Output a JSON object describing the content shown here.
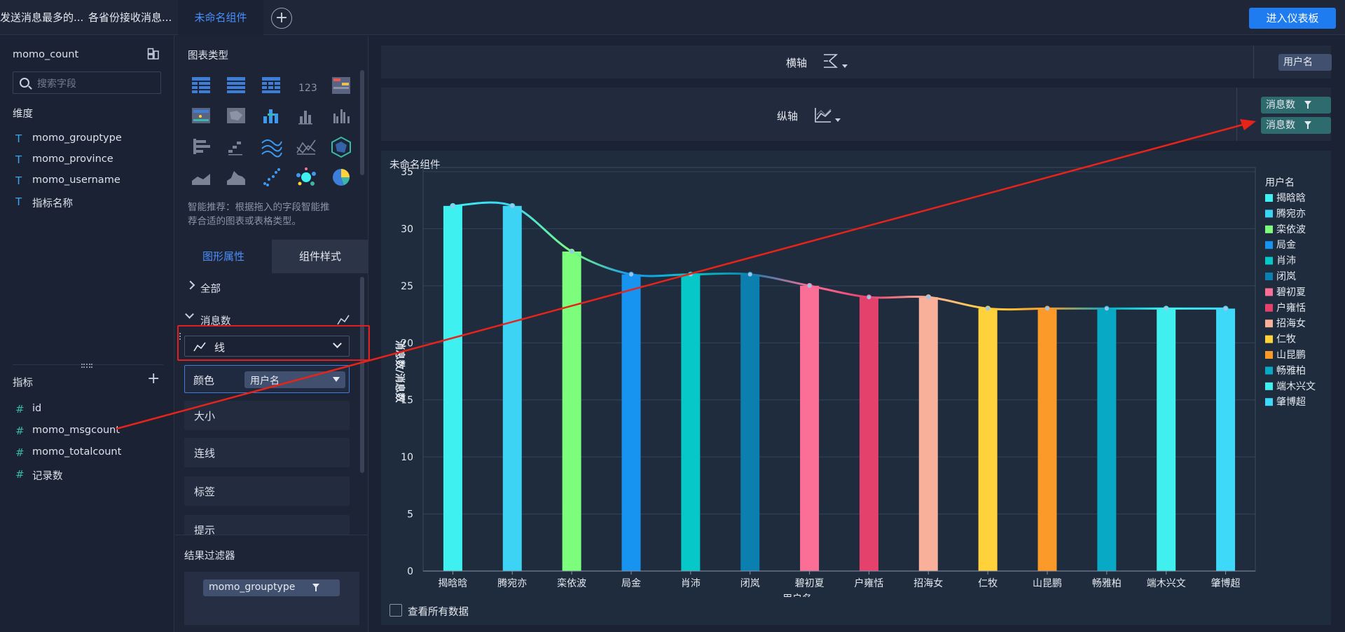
{
  "tabs": [
    {
      "label": "发送消息最多的..."
    },
    {
      "label": "各省份接收消息..."
    },
    {
      "label": "未命名组件"
    }
  ],
  "header": {
    "add_icon": "plus-circle-icon",
    "enter_dashboard": "进入仪表板"
  },
  "left": {
    "dataset": "momo_count",
    "search_placeholder": "搜索字段",
    "dimensions_title": "维度",
    "dimensions": [
      {
        "icon": "T",
        "label": "momo_grouptype"
      },
      {
        "icon": "T",
        "label": "momo_province"
      },
      {
        "icon": "T",
        "label": "momo_username"
      },
      {
        "icon": "T",
        "label": "指标名称"
      }
    ],
    "measures_title": "指标",
    "measures": [
      {
        "icon": "#",
        "label": "id"
      },
      {
        "icon": "#",
        "label": "momo_msgcount"
      },
      {
        "icon": "#",
        "label": "momo_totalcount"
      },
      {
        "icon": "#",
        "label": "记录数"
      }
    ]
  },
  "middle": {
    "chart_types_title": "图表类型",
    "smart_hint_line1": "智能推荐：根据拖入的字段智能推",
    "smart_hint_line2": "荐合适的图表或表格类型。",
    "tab_properties": "图形属性",
    "tab_styles": "组件样式",
    "section_all": "全部",
    "section_measure": "消息数",
    "chart_select": "线",
    "color_label": "颜色",
    "color_value": "用户名",
    "size_label": "大小",
    "connect_label": "连线",
    "label_label": "标签",
    "tooltip_label": "提示",
    "filter_title": "结果过滤器",
    "filter_pill": "momo_grouptype"
  },
  "axes": {
    "x_label": "横轴",
    "y_label": "纵轴",
    "x_pill": "用户名",
    "y_pills": [
      "消息数",
      "消息数"
    ]
  },
  "card": {
    "title": "未命名组件",
    "view_all": "查看所有数据"
  },
  "colors": {
    "accent": "#1f7cf0",
    "highlight_box": "#e02020",
    "arrow": "#e8231a"
  },
  "chart_data": {
    "type": "bar",
    "categories": [
      "揭晗晗",
      "腾宛亦",
      "栾依波",
      "局金",
      "肖沛",
      "闭岚",
      "碧初夏",
      "户雍恬",
      "招海女",
      "仁牧",
      "山昆鹏",
      "畅雅柏",
      "端木兴文",
      "肇博超"
    ],
    "series": [
      {
        "name": "消息数",
        "type": "bar",
        "values": [
          32,
          32,
          28,
          26,
          26,
          26,
          25,
          24,
          24,
          23,
          23,
          23,
          23,
          23
        ]
      },
      {
        "name": "消息数",
        "type": "line",
        "values": [
          32,
          32,
          28,
          26,
          26,
          26,
          25,
          24,
          24,
          23,
          23,
          23,
          23,
          23
        ]
      }
    ],
    "bar_colors": [
      "#3ef0f0",
      "#3cd3f5",
      "#7cfd7c",
      "#1793f0",
      "#06c8c8",
      "#0b7fb0",
      "#fb6e96",
      "#e4426c",
      "#f8b09a",
      "#ffd23c",
      "#fb9a28",
      "#07a9c4",
      "#40f0ee",
      "#3ed8f8"
    ],
    "ylabel": "消息数/消息数",
    "xlabel": "用户名",
    "ylim": [
      0,
      35
    ],
    "yticks": [
      0,
      5,
      10,
      15,
      20,
      25,
      30,
      35
    ],
    "legend_title": "用户名",
    "legend_position": "right",
    "grid": true
  }
}
